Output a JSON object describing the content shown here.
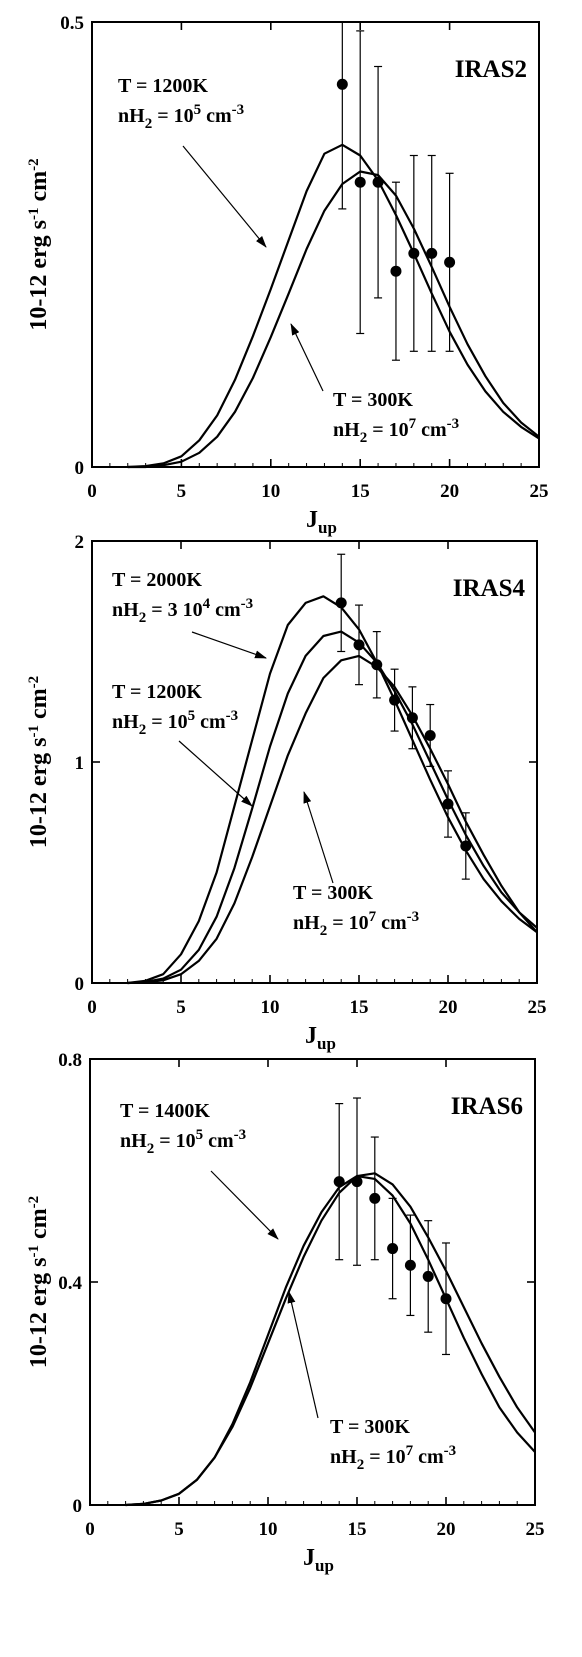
{
  "chart_data": [
    {
      "type": "line",
      "title": "IRAS2",
      "xlabel": "Jup",
      "ylabel": "10-12 erg s-1 cm-2",
      "xlim": [
        0,
        25
      ],
      "ylim": [
        0,
        0.5
      ],
      "xticks": [
        0,
        5,
        10,
        15,
        20,
        25
      ],
      "yticks": [
        0,
        0.5
      ],
      "ytick_labels": [
        "0",
        "0.5"
      ],
      "grid": false,
      "series": [
        {
          "x": [
            2,
            3,
            4,
            5,
            6,
            7,
            8,
            9,
            10,
            11,
            12,
            13,
            14,
            15,
            16,
            17,
            18,
            19,
            20,
            21,
            22,
            23,
            24,
            25
          ],
          "y": [
            0.0,
            0.001,
            0.004,
            0.012,
            0.03,
            0.058,
            0.098,
            0.147,
            0.2,
            0.255,
            0.31,
            0.352,
            0.362,
            0.35,
            0.322,
            0.283,
            0.24,
            0.195,
            0.152,
            0.115,
            0.085,
            0.062,
            0.045,
            0.032
          ]
        },
        {
          "x": [
            2,
            3,
            4,
            5,
            6,
            7,
            8,
            9,
            10,
            11,
            12,
            13,
            14,
            15,
            16,
            17,
            18,
            19,
            20,
            21,
            22,
            23,
            24,
            25
          ],
          "y": [
            0.0,
            0.0,
            0.002,
            0.006,
            0.016,
            0.034,
            0.062,
            0.1,
            0.146,
            0.195,
            0.245,
            0.288,
            0.318,
            0.332,
            0.328,
            0.305,
            0.268,
            0.225,
            0.18,
            0.138,
            0.102,
            0.072,
            0.05,
            0.034
          ]
        }
      ],
      "points": {
        "x": [
          14,
          15,
          16,
          17,
          18,
          19,
          20
        ],
        "y": [
          0.43,
          0.32,
          0.32,
          0.22,
          0.24,
          0.24,
          0.23
        ],
        "err": [
          0.14,
          0.17,
          0.13,
          0.1,
          0.11,
          0.11,
          0.1
        ]
      },
      "annotations": [
        {
          "line1": "T = 1200K",
          "line2_prefix": "nH",
          "line2_sub": "2",
          "line2_mid": " = 10",
          "line2_sup": "5",
          "line2_unit": " cm",
          "line2_unit_sup": "-3"
        },
        {
          "line1": "T = 300K",
          "line2_prefix": "nH",
          "line2_sub": "2",
          "line2_mid": " = 10",
          "line2_sup": "7",
          "line2_unit": " cm",
          "line2_unit_sup": "-3"
        }
      ]
    },
    {
      "type": "line",
      "title": "IRAS4",
      "xlabel": "Jup",
      "ylabel": "10-12 erg s-1 cm-2",
      "xlim": [
        0,
        25
      ],
      "ylim": [
        0,
        2
      ],
      "xticks": [
        0,
        5,
        10,
        15,
        20,
        25
      ],
      "yticks": [
        0,
        1,
        2
      ],
      "ytick_labels": [
        "0",
        "1",
        "2"
      ],
      "grid": false,
      "series": [
        {
          "x": [
            2,
            3,
            4,
            5,
            6,
            7,
            8,
            9,
            10,
            11,
            12,
            13,
            14,
            15,
            16,
            17,
            18,
            19,
            20,
            21,
            22,
            23,
            24,
            25
          ],
          "y": [
            0.0,
            0.01,
            0.04,
            0.13,
            0.28,
            0.5,
            0.8,
            1.1,
            1.4,
            1.62,
            1.72,
            1.75,
            1.7,
            1.6,
            1.45,
            1.28,
            1.1,
            0.92,
            0.75,
            0.6,
            0.47,
            0.37,
            0.29,
            0.23
          ]
        },
        {
          "x": [
            2,
            3,
            4,
            5,
            6,
            7,
            8,
            9,
            10,
            11,
            12,
            13,
            14,
            15,
            16,
            17,
            18,
            19,
            20,
            21,
            22,
            23,
            24,
            25
          ],
          "y": [
            0.0,
            0.005,
            0.02,
            0.06,
            0.15,
            0.3,
            0.52,
            0.79,
            1.07,
            1.31,
            1.48,
            1.57,
            1.59,
            1.54,
            1.45,
            1.32,
            1.17,
            1.0,
            0.83,
            0.67,
            0.53,
            0.41,
            0.32,
            0.25
          ]
        },
        {
          "x": [
            2,
            3,
            4,
            5,
            6,
            7,
            8,
            9,
            10,
            11,
            12,
            13,
            14,
            15,
            16,
            17,
            18,
            19,
            20,
            21,
            22,
            23,
            24,
            25
          ],
          "y": [
            0.0,
            0.003,
            0.012,
            0.04,
            0.1,
            0.2,
            0.36,
            0.57,
            0.8,
            1.03,
            1.22,
            1.38,
            1.46,
            1.48,
            1.43,
            1.34,
            1.21,
            1.06,
            0.9,
            0.73,
            0.58,
            0.44,
            0.32,
            0.23
          ]
        }
      ],
      "points": {
        "x": [
          14,
          15,
          16,
          17,
          18,
          19,
          20,
          21
        ],
        "y": [
          1.72,
          1.53,
          1.44,
          1.28,
          1.2,
          1.12,
          0.81,
          0.62
        ],
        "err": [
          0.22,
          0.18,
          0.15,
          0.14,
          0.14,
          0.14,
          0.15,
          0.15
        ]
      },
      "annotations": [
        {
          "line1": "T = 2000K",
          "line2_prefix": "nH",
          "line2_sub": "2",
          "line2_mid": " = 3 10",
          "line2_sup": "4",
          "line2_unit": " cm",
          "line2_unit_sup": "-3"
        },
        {
          "line1": "T = 1200K",
          "line2_prefix": "nH",
          "line2_sub": "2",
          "line2_mid": " = 10",
          "line2_sup": "5",
          "line2_unit": " cm",
          "line2_unit_sup": "-3"
        },
        {
          "line1": "T = 300K",
          "line2_prefix": "nH",
          "line2_sub": "2",
          "line2_mid": " = 10",
          "line2_sup": "7",
          "line2_unit": " cm",
          "line2_unit_sup": "-3"
        }
      ]
    },
    {
      "type": "line",
      "title": "IRAS6",
      "xlabel": "Jup",
      "ylabel": "10-12 erg s-1 cm-2",
      "xlim": [
        0,
        25
      ],
      "ylim": [
        0,
        0.8
      ],
      "xticks": [
        0,
        5,
        10,
        15,
        20,
        25
      ],
      "yticks": [
        0,
        0.4,
        0.8
      ],
      "ytick_labels": [
        "0",
        "0.4",
        "0.8"
      ],
      "grid": false,
      "series": [
        {
          "x": [
            2,
            3,
            4,
            5,
            6,
            7,
            8,
            9,
            10,
            11,
            12,
            13,
            14,
            15,
            16,
            17,
            18,
            19,
            20,
            21,
            22,
            23,
            24,
            25
          ],
          "y": [
            0.0,
            0.002,
            0.008,
            0.02,
            0.045,
            0.085,
            0.145,
            0.22,
            0.305,
            0.39,
            0.465,
            0.525,
            0.57,
            0.59,
            0.585,
            0.555,
            0.505,
            0.44,
            0.37,
            0.3,
            0.235,
            0.175,
            0.13,
            0.095
          ]
        },
        {
          "x": [
            2,
            3,
            4,
            5,
            6,
            7,
            8,
            9,
            10,
            11,
            12,
            13,
            14,
            15,
            16,
            17,
            18,
            19,
            20,
            21,
            22,
            23,
            24,
            25
          ],
          "y": [
            0.0,
            0.002,
            0.008,
            0.02,
            0.045,
            0.085,
            0.14,
            0.21,
            0.29,
            0.37,
            0.445,
            0.51,
            0.56,
            0.59,
            0.595,
            0.575,
            0.535,
            0.48,
            0.42,
            0.355,
            0.29,
            0.23,
            0.175,
            0.13
          ]
        }
      ],
      "points": {
        "x": [
          14,
          15,
          16,
          17,
          18,
          19,
          20
        ],
        "y": [
          0.58,
          0.58,
          0.55,
          0.46,
          0.43,
          0.41,
          0.37
        ],
        "err": [
          0.14,
          0.15,
          0.11,
          0.09,
          0.09,
          0.1,
          0.1
        ]
      },
      "annotations": [
        {
          "line1": "T = 1400K",
          "line2_prefix": "nH",
          "line2_sub": "2",
          "line2_mid": " = 10",
          "line2_sup": "5",
          "line2_unit": " cm",
          "line2_unit_sup": "-3"
        },
        {
          "line1": "T = 300K",
          "line2_prefix": "nH",
          "line2_sub": "2",
          "line2_mid": " = 10",
          "line2_sup": "7",
          "line2_unit": " cm",
          "line2_unit_sup": "-3"
        }
      ]
    }
  ]
}
